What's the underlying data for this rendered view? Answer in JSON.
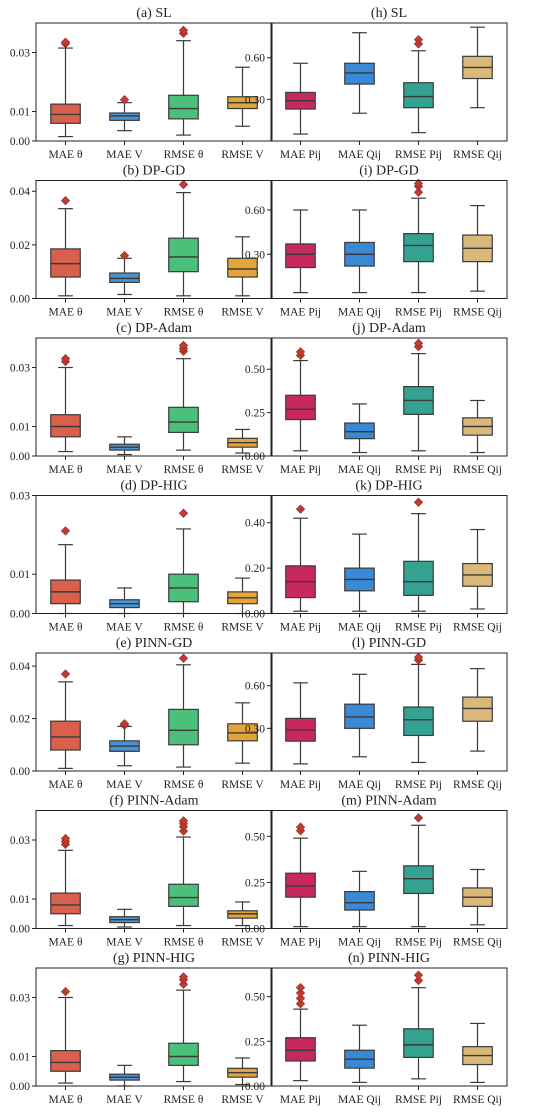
{
  "chart_data": [
    {
      "type": "box",
      "title": "(a) SL",
      "categories": [
        "MAE θ",
        "MAE V",
        "RMSE θ",
        "RMSE V"
      ],
      "ylim": [
        0,
        0.04
      ],
      "yticks": [
        0.0,
        0.01,
        0.03
      ],
      "ytick_labels": [
        "0.00",
        "0.01",
        "0.03"
      ],
      "boxes": [
        {
          "whislo": 0.0015,
          "q1": 0.006,
          "med": 0.009,
          "q3": 0.0125,
          "whishi": 0.0315,
          "fliers": [
            0.033,
            0.0335
          ]
        },
        {
          "whislo": 0.0035,
          "q1": 0.007,
          "med": 0.0085,
          "q3": 0.0095,
          "whishi": 0.013,
          "fliers": [
            0.014
          ]
        },
        {
          "whislo": 0.002,
          "q1": 0.0075,
          "med": 0.011,
          "q3": 0.0155,
          "whishi": 0.034,
          "fliers": [
            0.0365,
            0.0375
          ]
        },
        {
          "whislo": 0.005,
          "q1": 0.011,
          "med": 0.013,
          "q3": 0.015,
          "whishi": 0.025,
          "fliers": []
        }
      ]
    },
    {
      "type": "box",
      "title": "(h) SL",
      "categories": [
        "MAE Pij",
        "MAE Qij",
        "RMSE Pij",
        "RMSE Qij"
      ],
      "ylim": [
        0,
        0.85
      ],
      "yticks": [
        0.3,
        0.6
      ],
      "ytick_labels": [
        "0.30",
        "0.60"
      ],
      "boxes": [
        {
          "whislo": 0.05,
          "q1": 0.23,
          "med": 0.29,
          "q3": 0.35,
          "whishi": 0.56,
          "fliers": []
        },
        {
          "whislo": 0.2,
          "q1": 0.41,
          "med": 0.49,
          "q3": 0.56,
          "whishi": 0.78,
          "fliers": []
        },
        {
          "whislo": 0.06,
          "q1": 0.24,
          "med": 0.32,
          "q3": 0.42,
          "whishi": 0.65,
          "fliers": [
            0.7,
            0.73
          ]
        },
        {
          "whislo": 0.24,
          "q1": 0.45,
          "med": 0.53,
          "q3": 0.61,
          "whishi": 0.82,
          "fliers": []
        }
      ]
    },
    {
      "type": "box",
      "title": "(b) DP-GD",
      "categories": [
        "MAE θ",
        "MAE V",
        "RMSE θ",
        "RMSE V"
      ],
      "ylim": [
        0,
        0.044
      ],
      "yticks": [
        0.0,
        0.02,
        0.04
      ],
      "ytick_labels": [
        "0.00",
        "0.02",
        "0.04"
      ],
      "boxes": [
        {
          "whislo": 0.001,
          "q1": 0.008,
          "med": 0.013,
          "q3": 0.0185,
          "whishi": 0.0335,
          "fliers": [
            0.0365
          ]
        },
        {
          "whislo": 0.0015,
          "q1": 0.006,
          "med": 0.0075,
          "q3": 0.0095,
          "whishi": 0.015,
          "fliers": [
            0.016
          ]
        },
        {
          "whislo": 0.001,
          "q1": 0.01,
          "med": 0.0155,
          "q3": 0.0225,
          "whishi": 0.0395,
          "fliers": [
            0.0425
          ]
        },
        {
          "whislo": 0.001,
          "q1": 0.008,
          "med": 0.011,
          "q3": 0.015,
          "whishi": 0.023,
          "fliers": []
        }
      ]
    },
    {
      "type": "box",
      "title": "(i) DP-GD",
      "categories": [
        "MAE Pij",
        "MAE Qij",
        "RMSE Pij",
        "RMSE Qij"
      ],
      "ylim": [
        0,
        0.8
      ],
      "yticks": [
        0.3,
        0.6
      ],
      "ytick_labels": [
        "0.30",
        "0.60"
      ],
      "boxes": [
        {
          "whislo": 0.04,
          "q1": 0.21,
          "med": 0.3,
          "q3": 0.37,
          "whishi": 0.6,
          "fliers": []
        },
        {
          "whislo": 0.04,
          "q1": 0.22,
          "med": 0.3,
          "q3": 0.38,
          "whishi": 0.6,
          "fliers": []
        },
        {
          "whislo": 0.04,
          "q1": 0.25,
          "med": 0.36,
          "q3": 0.44,
          "whishi": 0.68,
          "fliers": [
            0.72,
            0.76,
            0.78
          ]
        },
        {
          "whislo": 0.05,
          "q1": 0.25,
          "med": 0.34,
          "q3": 0.43,
          "whishi": 0.63,
          "fliers": []
        }
      ]
    },
    {
      "type": "box",
      "title": "(c) DP-Adam",
      "categories": [
        "MAE θ",
        "MAE V",
        "RMSE θ",
        "RMSE V"
      ],
      "ylim": [
        0,
        0.04
      ],
      "yticks": [
        0.0,
        0.01,
        0.03
      ],
      "ytick_labels": [
        "0.00",
        "0.01",
        "0.03"
      ],
      "boxes": [
        {
          "whislo": 0.0015,
          "q1": 0.0065,
          "med": 0.01,
          "q3": 0.014,
          "whishi": 0.03,
          "fliers": [
            0.032,
            0.033
          ]
        },
        {
          "whislo": 0.0005,
          "q1": 0.002,
          "med": 0.003,
          "q3": 0.004,
          "whishi": 0.0065,
          "fliers": []
        },
        {
          "whislo": 0.002,
          "q1": 0.008,
          "med": 0.0115,
          "q3": 0.0165,
          "whishi": 0.033,
          "fliers": [
            0.0355,
            0.0365,
            0.0375
          ]
        },
        {
          "whislo": 0.001,
          "q1": 0.003,
          "med": 0.0045,
          "q3": 0.006,
          "whishi": 0.009,
          "fliers": []
        }
      ]
    },
    {
      "type": "box",
      "title": "(j) DP-Adam",
      "categories": [
        "MAE Pij",
        "MAE Qij",
        "RMSE Pij",
        "RMSE Qij"
      ],
      "ylim": [
        0,
        0.68
      ],
      "yticks": [
        0.0,
        0.25,
        0.5
      ],
      "ytick_labels": [
        "0.00",
        "0.25",
        "0.50"
      ],
      "boxes": [
        {
          "whislo": 0.03,
          "q1": 0.21,
          "med": 0.27,
          "q3": 0.35,
          "whishi": 0.55,
          "fliers": [
            0.58,
            0.6
          ]
        },
        {
          "whislo": 0.02,
          "q1": 0.1,
          "med": 0.14,
          "q3": 0.19,
          "whishi": 0.3,
          "fliers": []
        },
        {
          "whislo": 0.03,
          "q1": 0.24,
          "med": 0.32,
          "q3": 0.4,
          "whishi": 0.59,
          "fliers": [
            0.63,
            0.65
          ]
        },
        {
          "whislo": 0.02,
          "q1": 0.12,
          "med": 0.17,
          "q3": 0.22,
          "whishi": 0.32,
          "fliers": []
        }
      ]
    },
    {
      "type": "box",
      "title": "(d) DP-HIG",
      "categories": [
        "MAE θ",
        "MAE V",
        "RMSE θ",
        "RMSE V"
      ],
      "ylim": [
        0,
        0.03
      ],
      "yticks": [
        0.0,
        0.01,
        0.03
      ],
      "ytick_labels": [
        "0.00",
        "0.01",
        "0.03"
      ],
      "boxes": [
        {
          "whislo": 0.0,
          "q1": 0.0025,
          "med": 0.0055,
          "q3": 0.0085,
          "whishi": 0.0175,
          "fliers": [
            0.021
          ]
        },
        {
          "whislo": 0.0,
          "q1": 0.0015,
          "med": 0.0025,
          "q3": 0.0035,
          "whishi": 0.0065,
          "fliers": []
        },
        {
          "whislo": 0.0,
          "q1": 0.003,
          "med": 0.0065,
          "q3": 0.01,
          "whishi": 0.0215,
          "fliers": [
            0.0255
          ]
        },
        {
          "whislo": 0.0,
          "q1": 0.0025,
          "med": 0.004,
          "q3": 0.0055,
          "whishi": 0.009,
          "fliers": []
        }
      ]
    },
    {
      "type": "box",
      "title": "(k) DP-HIG",
      "categories": [
        "MAE Pij",
        "MAE Qij",
        "RMSE Pij",
        "RMSE Qij"
      ],
      "ylim": [
        0,
        0.52
      ],
      "yticks": [
        0.0,
        0.2,
        0.4
      ],
      "ytick_labels": [
        "0.00",
        "0.20",
        "0.40"
      ],
      "boxes": [
        {
          "whislo": 0.01,
          "q1": 0.07,
          "med": 0.14,
          "q3": 0.21,
          "whishi": 0.42,
          "fliers": [
            0.46
          ]
        },
        {
          "whislo": 0.01,
          "q1": 0.1,
          "med": 0.15,
          "q3": 0.2,
          "whishi": 0.35,
          "fliers": []
        },
        {
          "whislo": 0.01,
          "q1": 0.08,
          "med": 0.14,
          "q3": 0.23,
          "whishi": 0.44,
          "fliers": [
            0.49
          ]
        },
        {
          "whislo": 0.02,
          "q1": 0.12,
          "med": 0.17,
          "q3": 0.22,
          "whishi": 0.37,
          "fliers": []
        }
      ]
    },
    {
      "type": "box",
      "title": "(e) PINN-GD",
      "categories": [
        "MAE θ",
        "MAE V",
        "RMSE θ",
        "RMSE V"
      ],
      "ylim": [
        0,
        0.045
      ],
      "yticks": [
        0.0,
        0.02,
        0.04
      ],
      "ytick_labels": [
        "0.00",
        "0.02",
        "0.04"
      ],
      "boxes": [
        {
          "whislo": 0.001,
          "q1": 0.008,
          "med": 0.013,
          "q3": 0.019,
          "whishi": 0.034,
          "fliers": [
            0.037
          ]
        },
        {
          "whislo": 0.002,
          "q1": 0.0075,
          "med": 0.0095,
          "q3": 0.0115,
          "whishi": 0.017,
          "fliers": [
            0.0175,
            0.018
          ]
        },
        {
          "whislo": 0.0015,
          "q1": 0.01,
          "med": 0.0155,
          "q3": 0.0235,
          "whishi": 0.0405,
          "fliers": [
            0.043
          ]
        },
        {
          "whislo": 0.003,
          "q1": 0.0115,
          "med": 0.0145,
          "q3": 0.018,
          "whishi": 0.026,
          "fliers": []
        }
      ]
    },
    {
      "type": "box",
      "title": "(l) PINN-GD",
      "categories": [
        "MAE Pij",
        "MAE Qij",
        "RMSE Pij",
        "RMSE Qij"
      ],
      "ylim": [
        0,
        0.83
      ],
      "yticks": [
        0.3,
        0.6
      ],
      "ytick_labels": [
        "0.30",
        "0.60"
      ],
      "boxes": [
        {
          "whislo": 0.05,
          "q1": 0.21,
          "med": 0.29,
          "q3": 0.37,
          "whishi": 0.62,
          "fliers": []
        },
        {
          "whislo": 0.1,
          "q1": 0.3,
          "med": 0.38,
          "q3": 0.47,
          "whishi": 0.68,
          "fliers": []
        },
        {
          "whislo": 0.06,
          "q1": 0.25,
          "med": 0.36,
          "q3": 0.45,
          "whishi": 0.75,
          "fliers": [
            0.78,
            0.8
          ]
        },
        {
          "whislo": 0.14,
          "q1": 0.35,
          "med": 0.44,
          "q3": 0.52,
          "whishi": 0.72,
          "fliers": []
        }
      ]
    },
    {
      "type": "box",
      "title": "(f) PINN-Adam",
      "categories": [
        "MAE θ",
        "MAE V",
        "RMSE θ",
        "RMSE V"
      ],
      "ylim": [
        0,
        0.04
      ],
      "yticks": [
        0.0,
        0.01,
        0.03
      ],
      "ytick_labels": [
        "0.00",
        "0.01",
        "0.03"
      ],
      "boxes": [
        {
          "whislo": 0.001,
          "q1": 0.005,
          "med": 0.008,
          "q3": 0.012,
          "whishi": 0.0265,
          "fliers": [
            0.0285,
            0.0295,
            0.0305
          ]
        },
        {
          "whislo": 0.0005,
          "q1": 0.002,
          "med": 0.003,
          "q3": 0.004,
          "whishi": 0.0065,
          "fliers": []
        },
        {
          "whislo": 0.001,
          "q1": 0.0075,
          "med": 0.0105,
          "q3": 0.015,
          "whishi": 0.031,
          "fliers": [
            0.033,
            0.0345,
            0.0355,
            0.0365
          ]
        },
        {
          "whislo": 0.001,
          "q1": 0.0035,
          "med": 0.005,
          "q3": 0.006,
          "whishi": 0.009,
          "fliers": []
        }
      ]
    },
    {
      "type": "box",
      "title": "(m) PINN-Adam",
      "categories": [
        "MAE Pij",
        "MAE Qij",
        "RMSE Pij",
        "RMSE Qij"
      ],
      "ylim": [
        0,
        0.64
      ],
      "yticks": [
        0.0,
        0.25,
        0.5
      ],
      "ytick_labels": [
        "0.00",
        "0.25",
        "0.50"
      ],
      "boxes": [
        {
          "whislo": 0.01,
          "q1": 0.17,
          "med": 0.23,
          "q3": 0.3,
          "whishi": 0.49,
          "fliers": [
            0.53,
            0.55
          ]
        },
        {
          "whislo": 0.01,
          "q1": 0.1,
          "med": 0.14,
          "q3": 0.2,
          "whishi": 0.31,
          "fliers": []
        },
        {
          "whislo": 0.01,
          "q1": 0.19,
          "med": 0.27,
          "q3": 0.34,
          "whishi": 0.56,
          "fliers": [
            0.6
          ]
        },
        {
          "whislo": 0.02,
          "q1": 0.12,
          "med": 0.17,
          "q3": 0.22,
          "whishi": 0.32,
          "fliers": []
        }
      ]
    },
    {
      "type": "box",
      "title": "(g) PINN-HIG",
      "categories": [
        "MAE θ",
        "MAE V",
        "RMSE θ",
        "RMSE V"
      ],
      "ylim": [
        0,
        0.04
      ],
      "yticks": [
        0.0,
        0.01,
        0.03
      ],
      "ytick_labels": [
        "0.00",
        "0.01",
        "0.03"
      ],
      "boxes": [
        {
          "whislo": 0.001,
          "q1": 0.005,
          "med": 0.008,
          "q3": 0.012,
          "whishi": 0.03,
          "fliers": [
            0.032
          ]
        },
        {
          "whislo": 0.0,
          "q1": 0.002,
          "med": 0.003,
          "q3": 0.004,
          "whishi": 0.007,
          "fliers": []
        },
        {
          "whislo": 0.0015,
          "q1": 0.007,
          "med": 0.01,
          "q3": 0.0145,
          "whishi": 0.0325,
          "fliers": [
            0.0345,
            0.036,
            0.037
          ]
        },
        {
          "whislo": 0.0005,
          "q1": 0.003,
          "med": 0.0045,
          "q3": 0.006,
          "whishi": 0.0095,
          "fliers": []
        }
      ]
    },
    {
      "type": "box",
      "title": "(n) PINN-HIG",
      "categories": [
        "MAE Pij",
        "MAE Qij",
        "RMSE Pij",
        "RMSE Qij"
      ],
      "ylim": [
        0,
        0.66
      ],
      "yticks": [
        0.0,
        0.25,
        0.5
      ],
      "ytick_labels": [
        "0.00",
        "0.25",
        "0.50"
      ],
      "boxes": [
        {
          "whislo": 0.03,
          "q1": 0.14,
          "med": 0.2,
          "q3": 0.27,
          "whishi": 0.43,
          "fliers": [
            0.46,
            0.49,
            0.52,
            0.55
          ]
        },
        {
          "whislo": 0.02,
          "q1": 0.1,
          "med": 0.15,
          "q3": 0.2,
          "whishi": 0.34,
          "fliers": []
        },
        {
          "whislo": 0.04,
          "q1": 0.16,
          "med": 0.23,
          "q3": 0.32,
          "whishi": 0.55,
          "fliers": [
            0.59,
            0.62
          ]
        },
        {
          "whislo": 0.02,
          "q1": 0.12,
          "med": 0.17,
          "q3": 0.22,
          "whishi": 0.35,
          "fliers": []
        }
      ]
    }
  ],
  "colors": {
    "left_boxes": [
      "#d9604d",
      "#4a92d2",
      "#4cbf7a",
      "#e3a53a"
    ],
    "right_boxes": [
      "#c9285c",
      "#3b88d4",
      "#35a190",
      "#d9b87a"
    ],
    "flier": "#c23b32",
    "line": "#3a3a3a"
  }
}
